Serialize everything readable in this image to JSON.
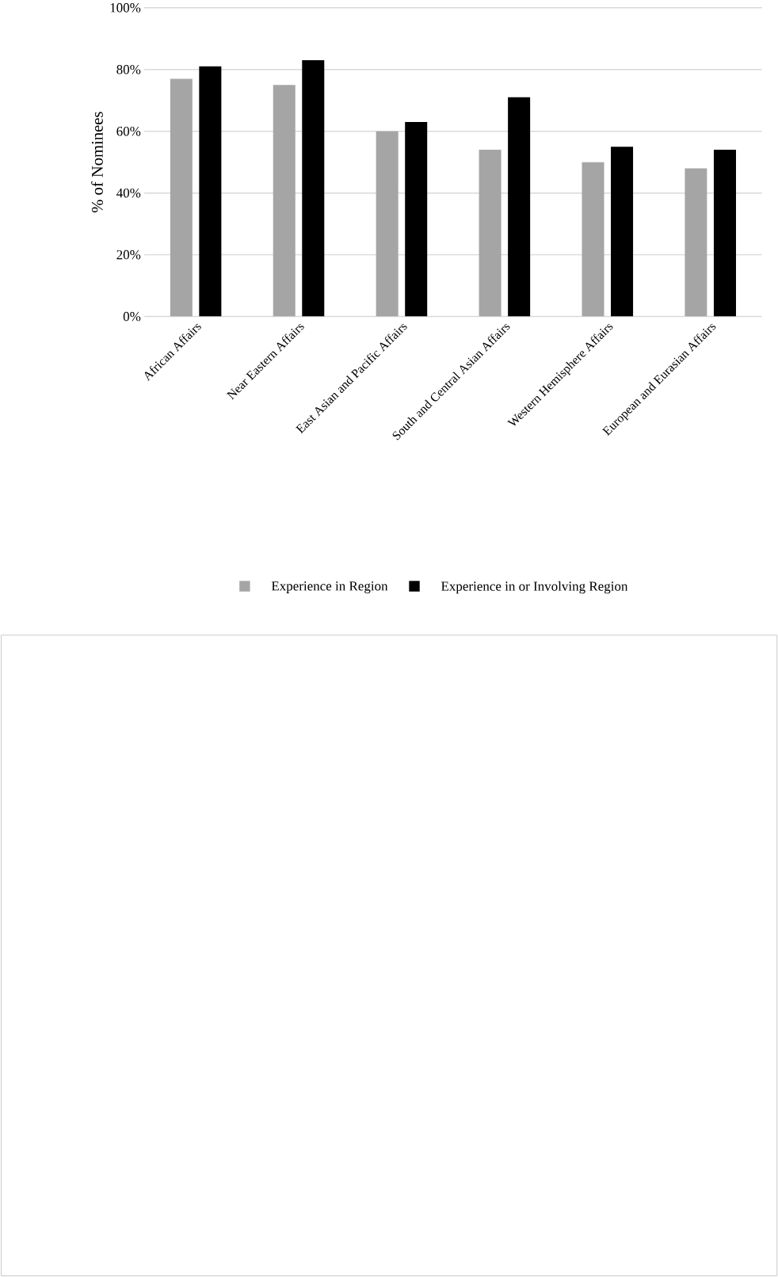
{
  "chart_data": {
    "type": "bar",
    "ylabel": "% of  Nominees",
    "categories": [
      "African Affairs",
      "Near Eastern Affairs",
      "East Asian and Pacific Affairs",
      "South and Central Asian Affairs",
      "Western Hemisphere Affairs",
      "European and Eurasian Affairs"
    ],
    "series": [
      {
        "name": "Experience in Region",
        "color": "#a5a5a5",
        "values": [
          77,
          75,
          60,
          54,
          50,
          48
        ]
      },
      {
        "name": "Experience in or Involving Region",
        "color": "#000000",
        "values": [
          81,
          83,
          63,
          71,
          55,
          54
        ]
      }
    ],
    "ylim": [
      0,
      100
    ],
    "yticks": [
      {
        "value": 0,
        "label": "0%"
      },
      {
        "value": 20,
        "label": "20%"
      },
      {
        "value": 40,
        "label": "40%"
      },
      {
        "value": 60,
        "label": "60%"
      },
      {
        "value": 80,
        "label": "80%"
      },
      {
        "value": 100,
        "label": "100%"
      }
    ],
    "grid": "y",
    "legend": "bottom"
  }
}
